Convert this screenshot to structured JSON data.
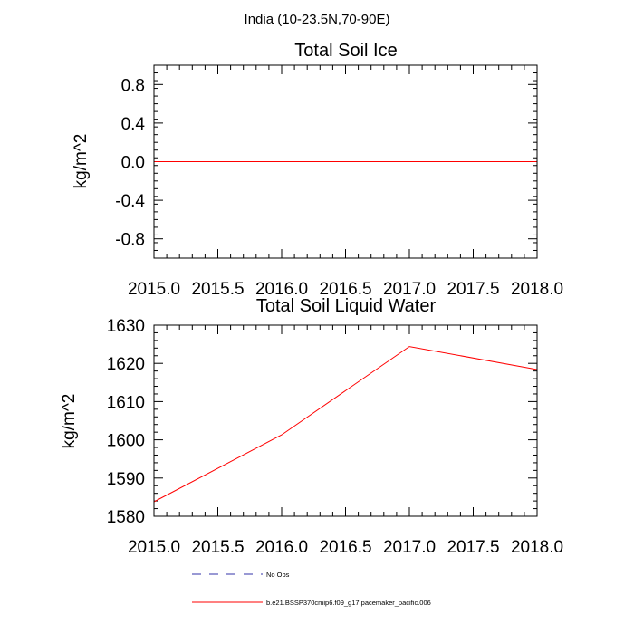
{
  "figure": {
    "suptitle": "India (10-23.5N,70-90E)"
  },
  "chart_data": [
    {
      "type": "line",
      "title": "Total Soil Ice",
      "xlabel": "",
      "ylabel": "kg/m^2",
      "xlim": [
        2015.0,
        2018.0
      ],
      "ylim": [
        -1.0,
        1.0
      ],
      "x_ticks": [
        2015.0,
        2015.5,
        2016.0,
        2016.5,
        2017.0,
        2017.5,
        2018.0
      ],
      "x_tick_labels": [
        "2015.0",
        "2015.5",
        "2016.0",
        "2016.5",
        "2017.0",
        "2017.5",
        "2018.0"
      ],
      "y_ticks": [
        0.8,
        0.4,
        0.0,
        -0.4,
        -0.8
      ],
      "y_tick_labels": [
        "0.8",
        "0.4",
        "0.0",
        "-0.4",
        "-0.8"
      ],
      "grid": false,
      "series": [
        {
          "name": "b.e21.BSSP370cmip6.f09_g17.pacemaker_pacific.006",
          "color": "#ff0000",
          "x": [
            2015.0,
            2016.0,
            2017.0,
            2018.0
          ],
          "y": [
            0.0,
            0.0,
            0.0,
            0.0
          ]
        }
      ]
    },
    {
      "type": "line",
      "title": "Total Soil Liquid Water",
      "xlabel": "",
      "ylabel": "kg/m^2",
      "xlim": [
        2015.0,
        2018.0
      ],
      "ylim": [
        1580,
        1630
      ],
      "x_ticks": [
        2015.0,
        2015.5,
        2016.0,
        2016.5,
        2017.0,
        2017.5,
        2018.0
      ],
      "x_tick_labels": [
        "2015.0",
        "2015.5",
        "2016.0",
        "2016.5",
        "2017.0",
        "2017.5",
        "2018.0"
      ],
      "y_ticks": [
        1630,
        1620,
        1610,
        1600,
        1590,
        1580
      ],
      "y_tick_labels": [
        "1630",
        "1620",
        "1610",
        "1600",
        "1590",
        "1580"
      ],
      "grid": false,
      "series": [
        {
          "name": "b.e21.BSSP370cmip6.f09_g17.pacemaker_pacific.006",
          "color": "#ff0000",
          "x": [
            2015.0,
            2016.0,
            2017.0,
            2018.0
          ],
          "y": [
            1583.8,
            1601.3,
            1624.4,
            1618.4
          ]
        }
      ]
    }
  ],
  "legend": {
    "position": "bottom-center",
    "entries": [
      {
        "label": "No Obs",
        "color": "#3333aa",
        "style": "dashed"
      },
      {
        "label": "b.e21.BSSP370cmip6.f09_g17.pacemaker_pacific.006",
        "color": "#ff0000",
        "style": "solid"
      }
    ]
  }
}
